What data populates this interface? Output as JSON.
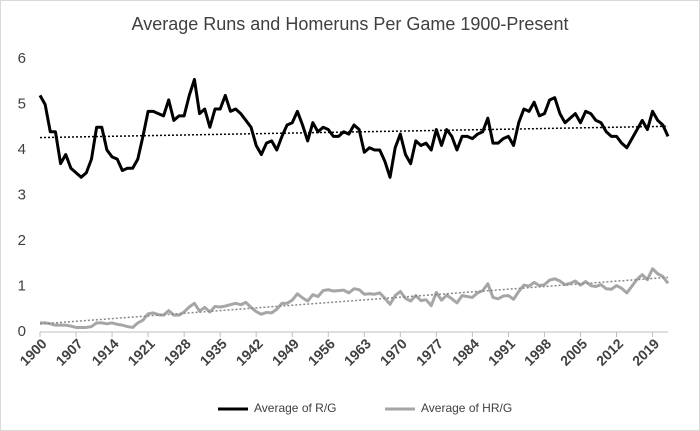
{
  "chart_data": {
    "type": "line",
    "title": "Average Runs and Homeruns Per Game 1900-Present",
    "x": [
      1900,
      1901,
      1902,
      1903,
      1904,
      1905,
      1906,
      1907,
      1908,
      1909,
      1910,
      1911,
      1912,
      1913,
      1914,
      1915,
      1916,
      1917,
      1918,
      1919,
      1920,
      1921,
      1922,
      1923,
      1924,
      1925,
      1926,
      1927,
      1928,
      1929,
      1930,
      1931,
      1932,
      1933,
      1934,
      1935,
      1936,
      1937,
      1938,
      1939,
      1940,
      1941,
      1942,
      1943,
      1944,
      1945,
      1946,
      1947,
      1948,
      1949,
      1950,
      1951,
      1952,
      1953,
      1954,
      1955,
      1956,
      1957,
      1958,
      1959,
      1960,
      1961,
      1962,
      1963,
      1964,
      1965,
      1966,
      1967,
      1968,
      1969,
      1970,
      1971,
      1972,
      1973,
      1974,
      1975,
      1976,
      1977,
      1978,
      1979,
      1980,
      1981,
      1982,
      1983,
      1984,
      1985,
      1986,
      1987,
      1988,
      1989,
      1990,
      1991,
      1992,
      1993,
      1994,
      1995,
      1996,
      1997,
      1998,
      1999,
      2000,
      2001,
      2002,
      2003,
      2004,
      2005,
      2006,
      2007,
      2008,
      2009,
      2010,
      2011,
      2012,
      2013,
      2014,
      2015,
      2016,
      2017,
      2018,
      2019,
      2020,
      2021,
      2022
    ],
    "series": [
      {
        "name": "Average of R/G",
        "color": "#000000",
        "values": [
          5.2,
          5.0,
          4.4,
          4.4,
          3.7,
          3.9,
          3.6,
          3.5,
          3.4,
          3.5,
          3.8,
          4.5,
          4.5,
          4.0,
          3.85,
          3.8,
          3.55,
          3.6,
          3.6,
          3.8,
          4.3,
          4.85,
          4.85,
          4.8,
          4.75,
          5.1,
          4.65,
          4.75,
          4.75,
          5.2,
          5.55,
          4.8,
          4.9,
          4.5,
          4.9,
          4.9,
          5.2,
          4.85,
          4.9,
          4.8,
          4.65,
          4.5,
          4.1,
          3.9,
          4.15,
          4.2,
          4.0,
          4.3,
          4.55,
          4.6,
          4.85,
          4.55,
          4.2,
          4.6,
          4.4,
          4.5,
          4.45,
          4.3,
          4.3,
          4.4,
          4.35,
          4.55,
          4.45,
          3.95,
          4.05,
          4.0,
          4.0,
          3.75,
          3.4,
          4.05,
          4.35,
          3.9,
          3.7,
          4.2,
          4.1,
          4.15,
          4.0,
          4.45,
          4.1,
          4.45,
          4.3,
          4.0,
          4.3,
          4.3,
          4.25,
          4.35,
          4.4,
          4.7,
          4.15,
          4.15,
          4.25,
          4.3,
          4.1,
          4.6,
          4.9,
          4.85,
          5.05,
          4.75,
          4.8,
          5.1,
          5.15,
          4.8,
          4.6,
          4.7,
          4.8,
          4.6,
          4.85,
          4.8,
          4.65,
          4.6,
          4.4,
          4.3,
          4.3,
          4.15,
          4.05,
          4.25,
          4.45,
          4.65,
          4.45,
          4.85,
          4.65,
          4.55,
          4.3
        ]
      },
      {
        "name": "Average of HR/G",
        "color": "#a6a6a6",
        "values": [
          0.2,
          0.2,
          0.18,
          0.15,
          0.15,
          0.15,
          0.13,
          0.1,
          0.1,
          0.1,
          0.12,
          0.2,
          0.2,
          0.18,
          0.2,
          0.17,
          0.15,
          0.12,
          0.1,
          0.2,
          0.26,
          0.4,
          0.42,
          0.38,
          0.37,
          0.47,
          0.37,
          0.37,
          0.44,
          0.55,
          0.63,
          0.46,
          0.54,
          0.44,
          0.56,
          0.55,
          0.57,
          0.6,
          0.63,
          0.6,
          0.65,
          0.54,
          0.45,
          0.39,
          0.43,
          0.42,
          0.5,
          0.63,
          0.63,
          0.7,
          0.84,
          0.75,
          0.68,
          0.82,
          0.78,
          0.91,
          0.93,
          0.9,
          0.91,
          0.92,
          0.86,
          0.95,
          0.93,
          0.83,
          0.84,
          0.83,
          0.86,
          0.74,
          0.61,
          0.8,
          0.89,
          0.74,
          0.68,
          0.8,
          0.69,
          0.71,
          0.58,
          0.87,
          0.7,
          0.81,
          0.73,
          0.64,
          0.8,
          0.78,
          0.76,
          0.86,
          0.91,
          1.06,
          0.76,
          0.73,
          0.79,
          0.8,
          0.72,
          0.89,
          1.03,
          1.01,
          1.09,
          1.02,
          1.04,
          1.14,
          1.17,
          1.12,
          1.04,
          1.07,
          1.12,
          1.03,
          1.11,
          1.02,
          1.0,
          1.04,
          0.95,
          0.94,
          1.02,
          0.96,
          0.86,
          1.01,
          1.16,
          1.26,
          1.15,
          1.39,
          1.28,
          1.22,
          1.07
        ]
      }
    ],
    "xlim": [
      1900,
      2022
    ],
    "xticks": [
      1900,
      1907,
      1914,
      1921,
      1928,
      1935,
      1942,
      1949,
      1956,
      1963,
      1970,
      1977,
      1984,
      1991,
      1998,
      2005,
      2012,
      2019
    ],
    "ylim": [
      0,
      6
    ],
    "yticks": [
      0,
      1,
      2,
      3,
      4,
      5,
      6
    ],
    "trendline": true,
    "legend": "bottom"
  }
}
